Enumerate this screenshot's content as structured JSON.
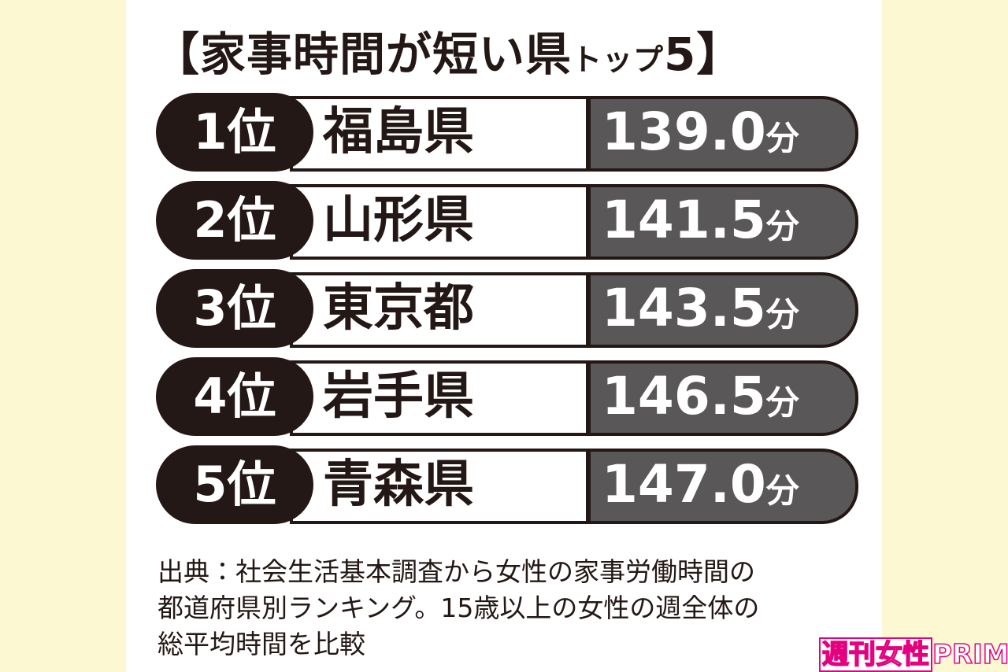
{
  "title": {
    "prefix": "【家事時間が短い県",
    "small": "トップ",
    "suffix": "5】"
  },
  "rows": [
    {
      "rank": "1位",
      "prefecture": "福島県",
      "value": "139.0",
      "unit": "分"
    },
    {
      "rank": "2位",
      "prefecture": "山形県",
      "value": "141.5",
      "unit": "分"
    },
    {
      "rank": "3位",
      "prefecture": "東京都",
      "value": "143.5",
      "unit": "分"
    },
    {
      "rank": "4位",
      "prefecture": "岩手県",
      "value": "146.5",
      "unit": "分"
    },
    {
      "rank": "5位",
      "prefecture": "青森県",
      "value": "147.0",
      "unit": "分"
    }
  ],
  "note": {
    "lines": [
      "出典：社会生活基本調査から女性の家事労働時間の",
      "都道府県別ランキング。15歳以上の女性の週全体の",
      "総平均時間を比較"
    ]
  },
  "watermark": {
    "kanji": "週刊女性",
    "latin": "PRIME"
  }
}
